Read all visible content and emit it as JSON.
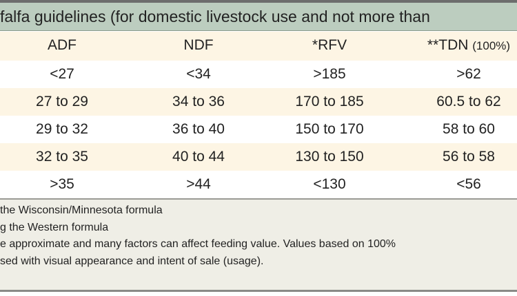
{
  "title": "falfa guidelines (for domestic livestock use and not more than",
  "columns": [
    "ADF",
    "NDF",
    "*RFV",
    "**TDN"
  ],
  "tdn_suffix": "(100%)",
  "rows": [
    [
      "<27",
      "<34",
      ">185",
      ">62"
    ],
    [
      "27 to 29",
      "34 to 36",
      "170 to 185",
      "60.5 to 62"
    ],
    [
      "29 to 32",
      "36 to 40",
      "150 to 170",
      "58 to 60"
    ],
    [
      "32 to 35",
      "40 to 44",
      "130 to 150",
      "56 to 58"
    ],
    [
      ">35",
      ">44",
      "<130",
      "<56"
    ]
  ],
  "footnotes": [
    "the Wisconsin/Minnesota formula",
    "g the Western formula",
    "e approximate and many factors can affect feeding value. Values based on 100%",
    "sed with visual appearance and intent of sale (usage)."
  ],
  "colors": {
    "title_band": "#bccdbf",
    "cream_row": "#fdf5e4",
    "footer": "#efeee6"
  }
}
